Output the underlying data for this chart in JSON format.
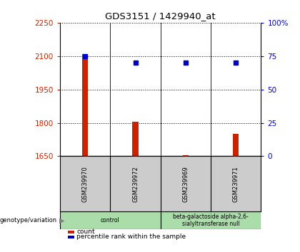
{
  "title": "GDS3151 / 1429940_at",
  "samples": [
    "GSM239970",
    "GSM239972",
    "GSM239969",
    "GSM239971"
  ],
  "bar_values": [
    2110,
    1805,
    1655,
    1750
  ],
  "bar_baseline": 1650,
  "percentile_values": [
    75,
    70,
    70,
    70
  ],
  "ylim_left": [
    1650,
    2250
  ],
  "ylim_right": [
    0,
    100
  ],
  "yticks_left": [
    1650,
    1800,
    1950,
    2100,
    2250
  ],
  "yticks_right": [
    0,
    25,
    50,
    75,
    100
  ],
  "bar_color": "#cc2200",
  "dot_color": "#0000cc",
  "groups": [
    {
      "label": "control",
      "samples": [
        0,
        1
      ],
      "color": "#99ee99"
    },
    {
      "label": "beta-galactoside alpha-2,6-\nsialyltransferase null",
      "samples": [
        2,
        3
      ],
      "color": "#77dd77"
    }
  ],
  "group_label_prefix": "genotype/variation",
  "legend_count_label": "count",
  "legend_pct_label": "percentile rank within the sample",
  "bar_width": 0.12,
  "left_tick_color": "#cc2200",
  "right_tick_color": "#0000cc",
  "background_sample_row": "#cccccc",
  "background_group_control": "#aaddaa",
  "background_group_mut": "#aaddaa",
  "fig_width": 4.2,
  "fig_height": 3.54,
  "dpi": 100
}
